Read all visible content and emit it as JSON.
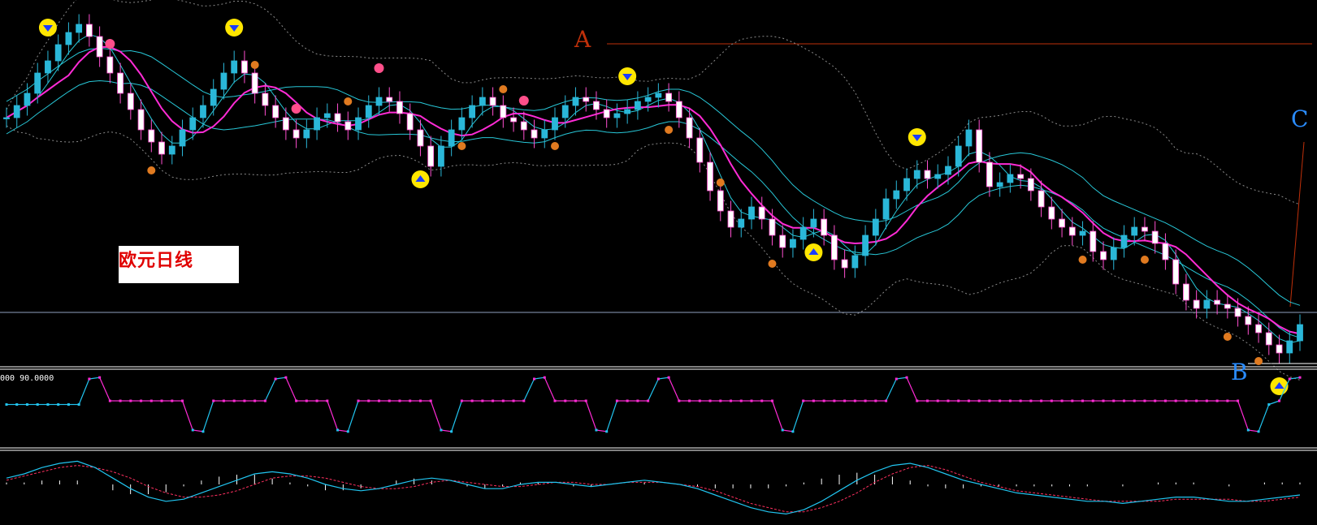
{
  "panel": {
    "title": "欧元日线",
    "osc_readout": "000 90.0000"
  },
  "annotations": {
    "a": "A",
    "b": "B",
    "c": "C"
  },
  "colors": {
    "background": "#000000",
    "candle_up": "#2ab7d8",
    "candle_down": "#ffffff",
    "candle_down_edge": "#ff4fd0",
    "ma_fast": "#ff2bd6",
    "ma_slow": "#28c8d8",
    "band": "#8a8a8a",
    "osc_high": "#ff2bd6",
    "osc_low": "#21c5f0",
    "macd_line": "#21c5f0",
    "signal_line": "#ff3060",
    "abc_line": "#c0300a",
    "c_label": "#2a8cff"
  },
  "chart_data": [
    {
      "type": "candlestick",
      "name_cn": "欧元日线",
      "closes": [
        1.455,
        1.458,
        1.461,
        1.466,
        1.469,
        1.473,
        1.476,
        1.478,
        1.475,
        1.47,
        1.466,
        1.461,
        1.457,
        1.452,
        1.449,
        1.446,
        1.448,
        1.452,
        1.455,
        1.458,
        1.462,
        1.466,
        1.469,
        1.466,
        1.461,
        1.458,
        1.455,
        1.452,
        1.45,
        1.452,
        1.455,
        1.456,
        1.454,
        1.452,
        1.455,
        1.458,
        1.46,
        1.459,
        1.456,
        1.452,
        1.448,
        1.443,
        1.448,
        1.452,
        1.455,
        1.458,
        1.46,
        1.458,
        1.455,
        1.454,
        1.452,
        1.45,
        1.452,
        1.455,
        1.458,
        1.46,
        1.459,
        1.457,
        1.455,
        1.456,
        1.457,
        1.459,
        1.46,
        1.461,
        1.459,
        1.455,
        1.45,
        1.444,
        1.437,
        1.432,
        1.428,
        1.43,
        1.433,
        1.43,
        1.426,
        1.423,
        1.425,
        1.428,
        1.43,
        1.426,
        1.42,
        1.418,
        1.421,
        1.426,
        1.43,
        1.435,
        1.437,
        1.44,
        1.442,
        1.44,
        1.441,
        1.443,
        1.448,
        1.452,
        1.444,
        1.438,
        1.439,
        1.441,
        1.44,
        1.437,
        1.433,
        1.43,
        1.428,
        1.426,
        1.427,
        1.422,
        1.42,
        1.423,
        1.426,
        1.428,
        1.427,
        1.424,
        1.42,
        1.414,
        1.41,
        1.408,
        1.41,
        1.409,
        1.408,
        1.406,
        1.404,
        1.402,
        1.399,
        1.397,
        1.4,
        1.404
      ],
      "yrange": [
        1.395,
        1.48
      ],
      "indicators": [
        "fast MA",
        "slow MA",
        "Bollinger bands"
      ],
      "buy_sell_signals": {
        "sell": [
          4,
          22,
          60,
          88
        ],
        "buy": [
          40,
          78,
          123
        ],
        "sell_minor": [
          10,
          28,
          36,
          50
        ],
        "buy_minor": [
          14,
          24,
          33,
          44,
          48,
          53,
          64,
          69,
          74,
          104,
          110,
          118,
          121
        ]
      }
    },
    {
      "type": "line",
      "name": "oscillator",
      "ylim": [
        0,
        100
      ],
      "values": [
        55,
        55,
        55,
        55,
        55,
        55,
        55,
        55,
        90,
        92,
        60,
        60,
        60,
        60,
        60,
        60,
        60,
        60,
        20,
        18,
        60,
        60,
        60,
        60,
        60,
        60,
        90,
        92,
        60,
        60,
        60,
        60,
        20,
        18,
        60,
        60,
        60,
        60,
        60,
        60,
        60,
        60,
        20,
        18,
        60,
        60,
        60,
        60,
        60,
        60,
        60,
        90,
        92,
        60,
        60,
        60,
        60,
        20,
        18,
        60,
        60,
        60,
        60,
        90,
        92,
        60,
        60,
        60,
        60,
        60,
        60,
        60,
        60,
        60,
        60,
        20,
        18,
        60,
        60,
        60,
        60,
        60,
        60,
        60,
        60,
        60,
        90,
        92,
        60,
        60,
        60,
        60,
        60,
        60,
        60,
        60,
        60,
        60,
        60,
        60,
        60,
        60,
        60,
        60,
        60,
        60,
        60,
        60,
        60,
        60,
        60,
        60,
        60,
        60,
        60,
        60,
        60,
        60,
        60,
        60,
        20,
        18,
        55,
        60,
        90,
        92
      ]
    },
    {
      "type": "line",
      "name": "macd",
      "values": [
        0.3,
        0.5,
        0.8,
        1.0,
        1.1,
        0.8,
        0.3,
        -0.2,
        -0.6,
        -0.8,
        -0.7,
        -0.4,
        -0.1,
        0.2,
        0.5,
        0.6,
        0.5,
        0.3,
        0.0,
        -0.2,
        -0.3,
        -0.2,
        0.0,
        0.2,
        0.3,
        0.2,
        0.0,
        -0.2,
        -0.2,
        0.0,
        0.1,
        0.1,
        0.0,
        -0.1,
        0.0,
        0.1,
        0.2,
        0.1,
        0.0,
        -0.2,
        -0.5,
        -0.8,
        -1.1,
        -1.3,
        -1.4,
        -1.2,
        -0.8,
        -0.3,
        0.2,
        0.6,
        0.9,
        1.0,
        0.8,
        0.5,
        0.2,
        0.0,
        -0.2,
        -0.4,
        -0.5,
        -0.6,
        -0.7,
        -0.8,
        -0.8,
        -0.9,
        -0.8,
        -0.7,
        -0.6,
        -0.6,
        -0.7,
        -0.8,
        -0.8,
        -0.7,
        -0.6,
        -0.5
      ],
      "signal": [
        0.2,
        0.4,
        0.6,
        0.8,
        0.9,
        0.8,
        0.6,
        0.3,
        -0.1,
        -0.4,
        -0.6,
        -0.6,
        -0.5,
        -0.3,
        0.0,
        0.3,
        0.4,
        0.4,
        0.3,
        0.1,
        -0.1,
        -0.2,
        -0.2,
        -0.1,
        0.1,
        0.2,
        0.1,
        0.0,
        -0.1,
        -0.1,
        0.0,
        0.1,
        0.1,
        0.0,
        0.0,
        0.1,
        0.1,
        0.1,
        0.0,
        -0.1,
        -0.3,
        -0.6,
        -0.9,
        -1.1,
        -1.3,
        -1.3,
        -1.1,
        -0.8,
        -0.4,
        0.1,
        0.5,
        0.8,
        0.9,
        0.7,
        0.4,
        0.1,
        -0.1,
        -0.3,
        -0.4,
        -0.5,
        -0.6,
        -0.7,
        -0.8,
        -0.8,
        -0.8,
        -0.8,
        -0.7,
        -0.7,
        -0.7,
        -0.7,
        -0.8,
        -0.8,
        -0.7,
        -0.6
      ]
    }
  ]
}
